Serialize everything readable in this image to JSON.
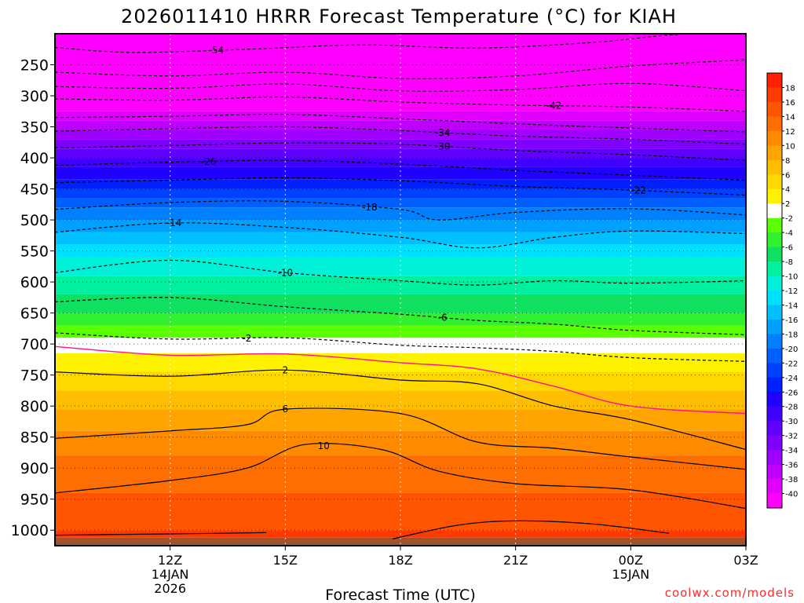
{
  "chart_data": {
    "type": "heatmap",
    "title": "2026011410 HRRR Forecast Temperature (°C) for KIAH",
    "xlabel": "Forecast Time (UTC)",
    "ylabel": "",
    "credit": "coolwx.com/models",
    "x_range_hours": [
      9,
      27
    ],
    "y_range_hPa": [
      200,
      1025
    ],
    "x_ticks": [
      {
        "hour": 12,
        "lines": [
          "12Z",
          "14JAN",
          "2026"
        ]
      },
      {
        "hour": 15,
        "lines": [
          "15Z"
        ]
      },
      {
        "hour": 18,
        "lines": [
          "18Z"
        ]
      },
      {
        "hour": 21,
        "lines": [
          "21Z"
        ]
      },
      {
        "hour": 24,
        "lines": [
          "00Z",
          "15JAN"
        ]
      },
      {
        "hour": 27,
        "lines": [
          "03Z"
        ]
      }
    ],
    "y_ticks": [
      250,
      300,
      350,
      400,
      450,
      500,
      550,
      600,
      650,
      700,
      750,
      800,
      850,
      900,
      950,
      1000
    ],
    "colorbar": {
      "levels": [
        18,
        16,
        14,
        12,
        10,
        8,
        6,
        4,
        2,
        -2,
        -4,
        -6,
        -8,
        -10,
        -12,
        -14,
        -16,
        -18,
        -20,
        -22,
        -24,
        -26,
        -28,
        -30,
        -32,
        -34,
        -36,
        -38,
        -40
      ],
      "colors": [
        "#ff2000",
        "#ff3a00",
        "#ff5400",
        "#ff6e00",
        "#ff8a00",
        "#ffa400",
        "#ffbe00",
        "#ffd800",
        "#fff200",
        "#ffffff",
        "#5aff00",
        "#30f030",
        "#10e060",
        "#00f0a0",
        "#00f0d8",
        "#00e0ff",
        "#00c0ff",
        "#00a0ff",
        "#0080ff",
        "#0060ff",
        "#0040ff",
        "#0020ff",
        "#2000ff",
        "#4000ff",
        "#6000ff",
        "#8000ff",
        "#a000ff",
        "#c000ff",
        "#e000ff",
        "#ff00ff"
      ]
    },
    "temperature_bands": [
      {
        "p_top": 200,
        "p_bot": 325,
        "temp": -50,
        "color": "#ff00ff"
      },
      {
        "p_top": 325,
        "p_bot": 340,
        "temp": -40,
        "color": "#e000ff"
      },
      {
        "p_top": 340,
        "p_bot": 355,
        "temp": -38,
        "color": "#c000ff"
      },
      {
        "p_top": 355,
        "p_bot": 370,
        "temp": -36,
        "color": "#a000ff"
      },
      {
        "p_top": 370,
        "p_bot": 385,
        "temp": -34,
        "color": "#8000ff"
      },
      {
        "p_top": 385,
        "p_bot": 400,
        "temp": -32,
        "color": "#6000ff"
      },
      {
        "p_top": 400,
        "p_bot": 415,
        "temp": -30,
        "color": "#4000ff"
      },
      {
        "p_top": 415,
        "p_bot": 435,
        "temp": -28,
        "color": "#2000ff"
      },
      {
        "p_top": 435,
        "p_bot": 450,
        "temp": -26,
        "color": "#0020ff"
      },
      {
        "p_top": 450,
        "p_bot": 465,
        "temp": -24,
        "color": "#0040ff"
      },
      {
        "p_top": 465,
        "p_bot": 480,
        "temp": -22,
        "color": "#0060ff"
      },
      {
        "p_top": 480,
        "p_bot": 500,
        "temp": -20,
        "color": "#0080ff"
      },
      {
        "p_top": 500,
        "p_bot": 520,
        "temp": -18,
        "color": "#00a0ff"
      },
      {
        "p_top": 520,
        "p_bot": 540,
        "temp": -16,
        "color": "#00c0ff"
      },
      {
        "p_top": 540,
        "p_bot": 560,
        "temp": -14,
        "color": "#00e0ff"
      },
      {
        "p_top": 560,
        "p_bot": 590,
        "temp": -12,
        "color": "#00f0d8"
      },
      {
        "p_top": 590,
        "p_bot": 620,
        "temp": -10,
        "color": "#00f0a0"
      },
      {
        "p_top": 620,
        "p_bot": 650,
        "temp": -8,
        "color": "#10e060"
      },
      {
        "p_top": 650,
        "p_bot": 670,
        "temp": -6,
        "color": "#30f030"
      },
      {
        "p_top": 670,
        "p_bot": 690,
        "temp": -4,
        "color": "#5aff00"
      },
      {
        "p_top": 690,
        "p_bot": 715,
        "temp": -2,
        "color": "#ffffff"
      },
      {
        "p_top": 715,
        "p_bot": 745,
        "temp": 2,
        "color": "#fff200"
      },
      {
        "p_top": 745,
        "p_bot": 775,
        "temp": 4,
        "color": "#ffd800"
      },
      {
        "p_top": 775,
        "p_bot": 805,
        "temp": 6,
        "color": "#ffbe00"
      },
      {
        "p_top": 805,
        "p_bot": 840,
        "temp": 8,
        "color": "#ffa400"
      },
      {
        "p_top": 840,
        "p_bot": 880,
        "temp": 10,
        "color": "#ff8a00"
      },
      {
        "p_top": 880,
        "p_bot": 940,
        "temp": 12,
        "color": "#ff6e00"
      },
      {
        "p_top": 940,
        "p_bot": 1000,
        "temp": 14,
        "color": "#ff5400"
      },
      {
        "p_top": 1000,
        "p_bot": 1012,
        "temp": 16,
        "color": "#ff3a00"
      },
      {
        "p_top": 1012,
        "p_bot": 1025,
        "temp": 0,
        "color": "#a0522d"
      }
    ],
    "contours": [
      {
        "temp": -54,
        "label": "-54",
        "style": "dashed",
        "color": "#000",
        "points": [
          [
            9,
            222
          ],
          [
            11,
            230
          ],
          [
            14,
            225
          ],
          [
            17,
            218
          ],
          [
            20,
            223
          ],
          [
            23,
            214
          ],
          [
            25,
            202
          ],
          [
            27,
            195
          ]
        ],
        "label_hour": 13.2
      },
      {
        "temp": -50,
        "label": "",
        "style": "dashed",
        "color": "#000",
        "points": [
          [
            9,
            262
          ],
          [
            12,
            268
          ],
          [
            15,
            262
          ],
          [
            18,
            272
          ],
          [
            21,
            268
          ],
          [
            24,
            252
          ],
          [
            27,
            242
          ]
        ],
        "label_hour": null
      },
      {
        "temp": -46,
        "label": "",
        "style": "dashed",
        "color": "#000",
        "points": [
          [
            9,
            285
          ],
          [
            12,
            288
          ],
          [
            15,
            281
          ],
          [
            18,
            292
          ],
          [
            21,
            290
          ],
          [
            24,
            280
          ],
          [
            27,
            292
          ]
        ],
        "label_hour": null
      },
      {
        "temp": -42,
        "label": "-42",
        "style": "dashed",
        "color": "#000",
        "points": [
          [
            9,
            305
          ],
          [
            12,
            307
          ],
          [
            15,
            302
          ],
          [
            18,
            310
          ],
          [
            21,
            315
          ],
          [
            24,
            318
          ],
          [
            27,
            325
          ]
        ],
        "label_hour": 22.0
      },
      {
        "temp": -38,
        "label": "",
        "style": "dashed",
        "color": "#000",
        "points": [
          [
            9,
            335
          ],
          [
            12,
            333
          ],
          [
            15,
            330
          ],
          [
            18,
            337
          ],
          [
            21,
            345
          ],
          [
            24,
            352
          ],
          [
            27,
            358
          ]
        ],
        "label_hour": null
      },
      {
        "temp": -34,
        "label": "-34",
        "style": "dashed",
        "color": "#000",
        "points": [
          [
            9,
            357
          ],
          [
            12,
            353
          ],
          [
            15,
            350
          ],
          [
            18,
            356
          ],
          [
            21,
            365
          ],
          [
            24,
            370
          ],
          [
            27,
            378
          ]
        ],
        "label_hour": 19.1
      },
      {
        "temp": -30,
        "label": "-30",
        "style": "dashed",
        "color": "#000",
        "points": [
          [
            9,
            384
          ],
          [
            12,
            380
          ],
          [
            15,
            376
          ],
          [
            18,
            378
          ],
          [
            21,
            388
          ],
          [
            24,
            395
          ],
          [
            27,
            404
          ]
        ],
        "label_hour": 19.1
      },
      {
        "temp": -26,
        "label": "-26",
        "style": "dashed",
        "color": "#000",
        "points": [
          [
            9,
            412
          ],
          [
            12,
            407
          ],
          [
            15,
            404
          ],
          [
            18,
            410
          ],
          [
            21,
            420
          ],
          [
            24,
            428
          ],
          [
            27,
            436
          ]
        ],
        "label_hour": 13.0
      },
      {
        "temp": -22,
        "label": "-22",
        "style": "dashed",
        "color": "#000",
        "points": [
          [
            9,
            440
          ],
          [
            12,
            436
          ],
          [
            15,
            432
          ],
          [
            18,
            437
          ],
          [
            21,
            446
          ],
          [
            24,
            452
          ],
          [
            27,
            460
          ]
        ],
        "label_hour": 24.2
      },
      {
        "temp": -18,
        "label": "-18",
        "style": "dashed",
        "color": "#000",
        "points": [
          [
            9,
            483
          ],
          [
            12,
            472
          ],
          [
            15,
            470
          ],
          [
            18,
            483
          ],
          [
            19,
            500
          ],
          [
            21,
            488
          ],
          [
            24,
            482
          ],
          [
            27,
            492
          ]
        ],
        "label_hour": 17.2
      },
      {
        "temp": -14,
        "label": "-14",
        "style": "dashed",
        "color": "#000",
        "points": [
          [
            9,
            520
          ],
          [
            12,
            505
          ],
          [
            15,
            512
          ],
          [
            18,
            528
          ],
          [
            20,
            545
          ],
          [
            22,
            528
          ],
          [
            24,
            518
          ],
          [
            27,
            522
          ]
        ],
        "label_hour": 12.1
      },
      {
        "temp": -10,
        "label": "-10",
        "style": "dashed",
        "color": "#000",
        "points": [
          [
            9,
            585
          ],
          [
            12,
            565
          ],
          [
            15,
            585
          ],
          [
            18,
            598
          ],
          [
            20,
            605
          ],
          [
            22,
            598
          ],
          [
            24,
            602
          ],
          [
            27,
            598
          ]
        ],
        "label_hour": 15.0
      },
      {
        "temp": -6,
        "label": "-6",
        "style": "dashed",
        "color": "#000",
        "points": [
          [
            9,
            632
          ],
          [
            12,
            625
          ],
          [
            15,
            640
          ],
          [
            18,
            652
          ],
          [
            20,
            662
          ],
          [
            22,
            668
          ],
          [
            24,
            678
          ],
          [
            27,
            685
          ]
        ],
        "label_hour": 19.1
      },
      {
        "temp": -2,
        "label": "-2",
        "style": "dashed",
        "color": "#000",
        "points": [
          [
            9,
            682
          ],
          [
            12,
            692
          ],
          [
            15,
            690
          ],
          [
            18,
            702
          ],
          [
            20,
            706
          ],
          [
            22,
            712
          ],
          [
            24,
            722
          ],
          [
            27,
            728
          ]
        ],
        "label_hour": 14.0
      },
      {
        "temp": 0,
        "label": "",
        "style": "solid",
        "color": "#ff1090",
        "points": [
          [
            9,
            704
          ],
          [
            12,
            718
          ],
          [
            15,
            716
          ],
          [
            18,
            730
          ],
          [
            20,
            740
          ],
          [
            22,
            768
          ],
          [
            24,
            800
          ],
          [
            27,
            812
          ]
        ],
        "label_hour": null
      },
      {
        "temp": 2,
        "label": "2",
        "style": "solid",
        "color": "#000",
        "points": [
          [
            9,
            745
          ],
          [
            12,
            752
          ],
          [
            15,
            742
          ],
          [
            18,
            758
          ],
          [
            20,
            764
          ],
          [
            22,
            800
          ],
          [
            24,
            822
          ],
          [
            27,
            870
          ]
        ],
        "label_hour": 15.0
      },
      {
        "temp": 6,
        "label": "6",
        "style": "solid",
        "color": "#000",
        "points": [
          [
            9,
            852
          ],
          [
            12,
            840
          ],
          [
            14,
            830
          ],
          [
            15,
            805
          ],
          [
            18,
            812
          ],
          [
            20,
            858
          ],
          [
            22,
            868
          ],
          [
            24,
            882
          ],
          [
            27,
            902
          ]
        ],
        "label_hour": 15.0
      },
      {
        "temp": 10,
        "label": "10",
        "style": "solid",
        "color": "#000",
        "points": [
          [
            9,
            940
          ],
          [
            12,
            920
          ],
          [
            14,
            900
          ],
          [
            15.5,
            862
          ],
          [
            17.5,
            870
          ],
          [
            19,
            905
          ],
          [
            21,
            925
          ],
          [
            24,
            935
          ],
          [
            27,
            965
          ]
        ],
        "label_hour": 16.0
      },
      {
        "temp": 14,
        "label": "",
        "style": "solid",
        "color": "#000",
        "points": [
          [
            9,
            1008
          ],
          [
            12,
            1006
          ],
          [
            14.5,
            1004
          ]
        ],
        "label_hour": null
      },
      {
        "temp": 14.5,
        "label": "",
        "style": "solid",
        "color": "#000",
        "points": [
          [
            17.8,
            1014
          ],
          [
            19.5,
            992
          ],
          [
            21,
            985
          ],
          [
            23,
            990
          ],
          [
            25,
            1005
          ]
        ],
        "label_hour": null
      }
    ]
  }
}
